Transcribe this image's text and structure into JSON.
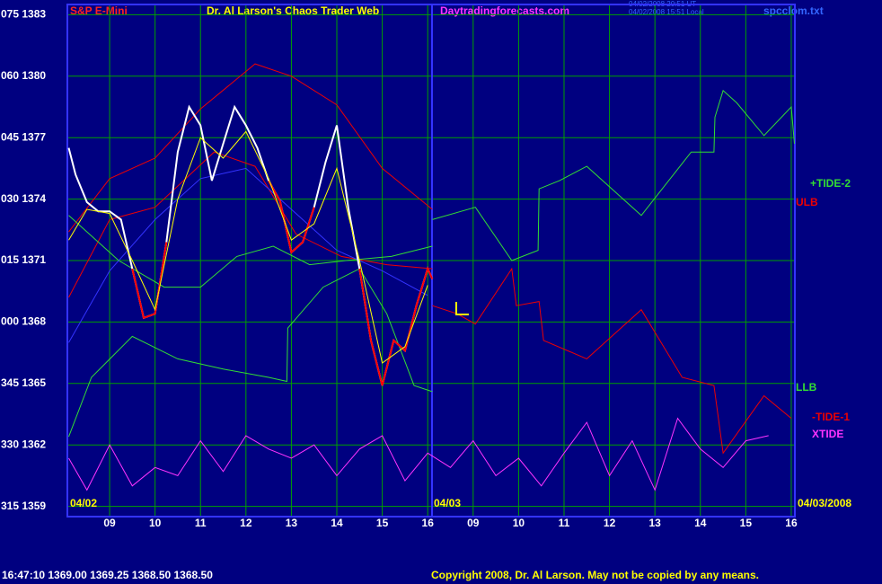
{
  "chart_data": {
    "type": "line",
    "symbol": "S&P E-Mini",
    "title": "Dr. Al Larson's Chaos Trader Web",
    "site": "Daytradingforecasts.com",
    "timestamps": [
      "04/02/2008 20:51 UT",
      "04/02/2008 15:51 Local"
    ],
    "file": "spcclom.txt",
    "date_labels": [
      "04/02",
      "04/03",
      "04/03/2008"
    ],
    "quote": "16:47:10  1369.00 1369.25 1368.50 1368.50",
    "copyright": "Copyright 2008, Dr. Al Larson. May not be copied by any means.",
    "grid": true,
    "grid_color": "#00a000",
    "xlim": [
      8.07,
      24.08
    ],
    "ylim": [
      1358.5,
      1383.5
    ],
    "xticks": [
      {
        "value": 9,
        "label": "09"
      },
      10,
      11,
      12,
      13,
      14,
      15,
      16,
      {
        "value": 17,
        "label": "09"
      },
      {
        "value": 18,
        "label": "10"
      },
      {
        "value": 19,
        "label": "11"
      },
      {
        "value": 20,
        "label": "12"
      },
      {
        "value": 21,
        "label": "13"
      },
      {
        "value": 22,
        "label": "14"
      },
      {
        "value": 23,
        "label": "15"
      },
      {
        "value": 24,
        "label": "16"
      }
    ],
    "yticks": [
      {
        "value": 1383,
        "label": "075 1383"
      },
      {
        "value": 1380,
        "label": "060 1380"
      },
      {
        "value": 1377,
        "label": "045 1377"
      },
      {
        "value": 1374,
        "label": "030 1374"
      },
      {
        "value": 1371,
        "label": "015 1371"
      },
      {
        "value": 1368,
        "label": "000 1368"
      },
      {
        "value": 1365,
        "label": "345 1365"
      },
      {
        "value": 1362,
        "label": "330 1362"
      },
      {
        "value": 1359,
        "label": "315 1359"
      }
    ],
    "series": [
      {
        "name": "+TIDE-2",
        "color": "#33dd33",
        "x": [
          16.1,
          17.05,
          17.85,
          18.43,
          18.45,
          18.9,
          19.5,
          20.7,
          21.8,
          22.3,
          22.32,
          22.5,
          22.8,
          23.4,
          24.0,
          24.07
        ],
        "values": [
          1373.0,
          1373.6,
          1371.0,
          1371.5,
          1374.5,
          1374.9,
          1375.6,
          1373.2,
          1376.3,
          1376.3,
          1378.0,
          1379.3,
          1378.7,
          1377.1,
          1378.5,
          1376.7
        ]
      },
      {
        "name": "ULB",
        "color": "#ee0000",
        "x": [
          8.1,
          9,
          10,
          11,
          12.2,
          13,
          14,
          15,
          16.1
        ],
        "values": [
          1372.4,
          1375.0,
          1376.0,
          1378.4,
          1380.6,
          1380.0,
          1378.6,
          1375.5,
          1373.5
        ]
      },
      {
        "name": "LLB",
        "color": "#33dd33",
        "x": [
          8.1,
          8.6,
          9.5,
          10.5,
          11.5,
          12.5,
          12.9,
          12.92,
          13.7,
          14.5,
          15.1,
          15.7,
          16.1
        ],
        "values": [
          1362.4,
          1365.3,
          1367.3,
          1366.2,
          1365.7,
          1365.3,
          1365.1,
          1367.7,
          1369.7,
          1370.6,
          1368.4,
          1364.9,
          1364.6
        ]
      },
      {
        "name": "-TIDE-1",
        "color": "#ee0000",
        "x": [
          16.1,
          16.65,
          17.05,
          17.85,
          17.95,
          18.45,
          18.55,
          19.5,
          20.7,
          21.6,
          22.3,
          22.5,
          23.4,
          24.0
        ],
        "values": [
          1368.8,
          1368.4,
          1367.9,
          1370.6,
          1368.8,
          1369.0,
          1367.1,
          1366.2,
          1368.6,
          1365.3,
          1364.9,
          1361.6,
          1364.4,
          1363.3
        ]
      },
      {
        "name": "XTIDE",
        "color": "#ff33ff",
        "x": [
          8.1,
          8.5,
          9,
          9.5,
          10,
          10.5,
          11,
          11.5,
          12,
          12.5,
          13,
          13.5,
          14,
          14.5,
          15,
          15.5,
          16,
          16.5,
          17,
          17.5,
          18,
          18.5,
          19,
          19.5,
          20,
          20.5,
          21,
          21.5,
          22,
          22.5,
          23,
          23.5
        ],
        "values": [
          1361.35,
          1359.8,
          1362.0,
          1360.0,
          1360.9,
          1360.5,
          1362.2,
          1360.7,
          1362.45,
          1361.8,
          1361.35,
          1362.0,
          1360.5,
          1361.8,
          1362.45,
          1360.25,
          1361.6,
          1360.9,
          1362.2,
          1360.5,
          1361.35,
          1360.0,
          1361.6,
          1363.1,
          1360.5,
          1362.2,
          1359.8,
          1363.3,
          1361.8,
          1360.9,
          1362.2,
          1362.45
        ]
      },
      {
        "color": "#ee0000",
        "x": [
          8.1,
          9,
          10,
          11.3,
          12.2,
          13.1,
          14.1,
          15.1,
          16.1
        ],
        "values": [
          1369.2,
          1373.0,
          1373.6,
          1376.3,
          1375.6,
          1372.3,
          1371.2,
          1370.8,
          1370.6
        ]
      },
      {
        "color": "#33dd33",
        "x": [
          8.1,
          9.2,
          10.2,
          11,
          11.8,
          12.6,
          13.4,
          14.2,
          15.2,
          16.1
        ],
        "values": [
          1373.2,
          1371.0,
          1369.7,
          1369.7,
          1371.2,
          1371.7,
          1370.8,
          1371.0,
          1371.2,
          1371.7
        ]
      },
      {
        "color": "#3333ff",
        "x": [
          8.1,
          9,
          10,
          11,
          12,
          13,
          14,
          15,
          16
        ],
        "values": [
          1367.0,
          1370.5,
          1373.0,
          1375.0,
          1375.5,
          1373.5,
          1371.5,
          1370.5,
          1369.3
        ]
      },
      {
        "color": "#ffffff",
        "x": [
          8.1,
          8.25,
          8.5,
          8.75,
          9,
          9.25,
          9.5,
          9.75,
          10,
          10.25,
          10.5,
          10.75,
          11,
          11.25,
          11.5,
          11.75,
          12,
          12.25,
          12.5,
          12.75,
          13,
          13.25,
          13.5,
          13.75,
          14,
          14.25,
          14.5,
          14.75,
          15,
          15.25,
          15.5,
          15.75,
          16,
          16.1
        ],
        "values": [
          1376.5,
          1375.2,
          1373.85,
          1373.4,
          1373.4,
          1373.0,
          1370.6,
          1368.2,
          1368.4,
          1371.9,
          1376.3,
          1378.5,
          1377.6,
          1374.9,
          1376.7,
          1378.5,
          1377.6,
          1376.5,
          1374.9,
          1373.9,
          1371.4,
          1371.9,
          1373.6,
          1375.8,
          1377.6,
          1373.6,
          1370.6,
          1367.1,
          1364.9,
          1367.1,
          1366.6,
          1368.8,
          1370.6,
          1370.1
        ]
      },
      {
        "color": "#ff0000",
        "x": [
          8.1,
          8.25,
          8.5,
          8.75,
          9,
          9.25,
          9.5,
          9.75,
          10,
          10.25,
          10.5,
          10.75,
          11,
          11.25,
          11.5,
          11.75,
          12,
          12.25,
          12.5,
          12.75,
          13,
          13.25,
          13.5,
          13.75,
          14,
          14.25,
          14.5,
          14.75,
          15,
          15.25,
          15.5,
          15.75,
          16,
          16.1
        ],
        "values": [
          null,
          null,
          null,
          null,
          null,
          null,
          1370.6,
          1368.2,
          1368.4,
          1371.9,
          null,
          null,
          null,
          null,
          null,
          null,
          null,
          null,
          1374.9,
          1373.9,
          1371.4,
          1371.9,
          1373.6,
          null,
          null,
          null,
          1370.6,
          1367.1,
          1364.9,
          1367.1,
          1366.6,
          1368.8,
          1370.6,
          1370.1
        ]
      },
      {
        "color": "#ffff00",
        "x": [
          8.1,
          8.5,
          9,
          9.5,
          10,
          10.5,
          11,
          11.5,
          12,
          12.5,
          13,
          13.5,
          14,
          14.5,
          15,
          15.5,
          16
        ],
        "values": [
          1372.0,
          1373.5,
          1373.3,
          1371.0,
          1368.6,
          1374.0,
          1377.0,
          1376.0,
          1377.3,
          1375.0,
          1372.0,
          1372.8,
          1375.5,
          1371.0,
          1366.0,
          1366.8,
          1369.8
        ]
      }
    ]
  }
}
